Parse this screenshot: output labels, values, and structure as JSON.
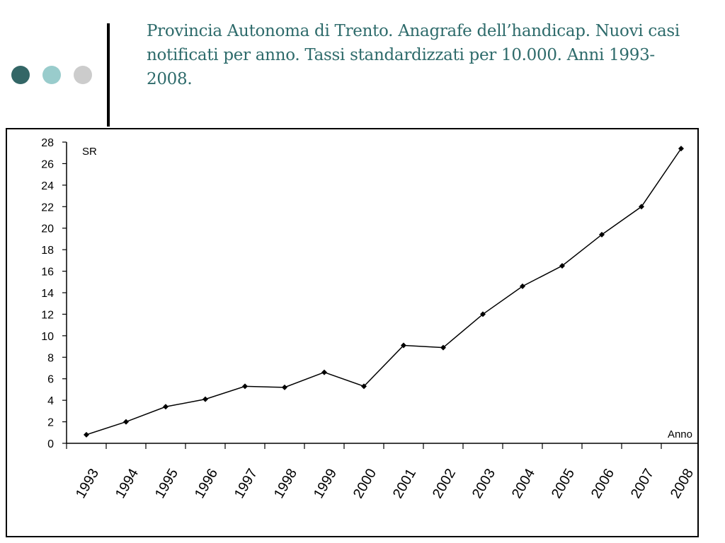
{
  "slide": {
    "title": "Provincia Autonoma di Trento. Anagrafe dell’handicap. Nuovi casi notificati per anno. Tassi standardizzati per 10.000. Anni 1993-2008.",
    "title_color": "#2e6b6b",
    "dot_colors": [
      "#336666",
      "#99cccc",
      "#cccccc"
    ]
  },
  "chart_data": {
    "type": "line",
    "title": "",
    "ylabel": "SR",
    "xlabel": "Anno",
    "ylim": [
      0,
      28
    ],
    "y_ticks": [
      "0",
      "2",
      "4",
      "6",
      "8",
      "10",
      "12",
      "14",
      "16",
      "18",
      "20",
      "22",
      "24",
      "26",
      "28"
    ],
    "categories": [
      "1993",
      "1994",
      "1995",
      "1996",
      "1997",
      "1998",
      "1999",
      "2000",
      "2001",
      "2002",
      "2003",
      "2004",
      "2005",
      "2006",
      "2007",
      "2008"
    ],
    "series": [
      {
        "name": "",
        "color": "#000000",
        "values": [
          0.8,
          2.0,
          3.4,
          4.1,
          5.3,
          5.2,
          6.6,
          5.3,
          9.1,
          8.9,
          12.0,
          14.6,
          16.5,
          19.4,
          22.0,
          27.4
        ]
      }
    ],
    "grid": false
  }
}
